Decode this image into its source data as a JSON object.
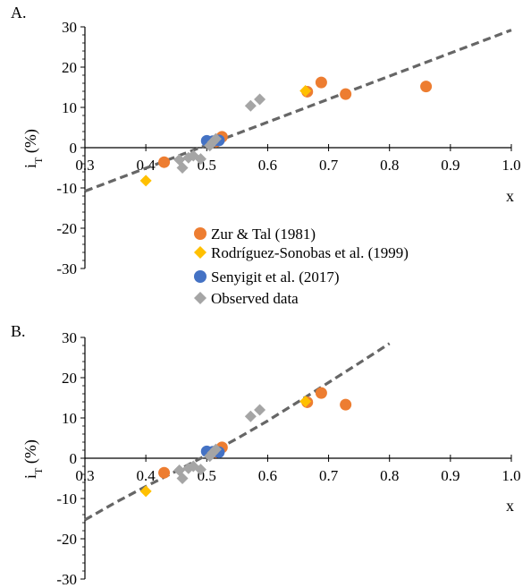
{
  "colors": {
    "zur": "#ED7D31",
    "rodriguez": "#FFC000",
    "senyigit": "#4472C4",
    "observed": "#A5A5A5",
    "trend": "#666666"
  },
  "legend": {
    "zur": "Zur & Tal (1981)",
    "rodriguez": "Rodríguez-Sonobas et al. (1999)",
    "senyigit": "Senyigit et al. (2017)",
    "observed": "Observed data"
  },
  "chart_data": [
    {
      "type": "scatter",
      "panel_label": "A.",
      "xlabel": "x",
      "ylabel": "iT (%)",
      "ylabel_main": "i",
      "ylabel_sub": "T",
      "ylabel_rest": " (%)",
      "xlim": [
        0.3,
        1.0
      ],
      "ylim": [
        -30,
        30
      ],
      "xticks": [
        "0.3",
        "0.4",
        "0.5",
        "0.6",
        "0.7",
        "0.8",
        "0.9",
        "1.0"
      ],
      "yticks": [
        "30",
        "20",
        "10",
        "0",
        "-10",
        "-20",
        "-30"
      ],
      "series": [
        {
          "name": "Zur & Tal (1981)",
          "marker": "circle",
          "color_key": "zur",
          "points": [
            [
              0.43,
              -3.6
            ],
            [
              0.515,
              1.5
            ],
            [
              0.525,
              2.7
            ],
            [
              0.665,
              13.9
            ],
            [
              0.688,
              16.2
            ],
            [
              0.728,
              13.3
            ],
            [
              0.86,
              15.2
            ]
          ]
        },
        {
          "name": "Rodríguez-Sonobas et al. (1999)",
          "marker": "diamond",
          "color_key": "rodriguez",
          "points": [
            [
              0.4,
              -8.2
            ],
            [
              0.662,
              14.1
            ]
          ]
        },
        {
          "name": "Senyigit et al. (2017)",
          "marker": "circle",
          "color_key": "senyigit",
          "points": [
            [
              0.5,
              1.7
            ],
            [
              0.51,
              1.6
            ],
            [
              0.52,
              1.8
            ]
          ]
        },
        {
          "name": "Observed data",
          "marker": "diamond",
          "color_key": "observed",
          "points": [
            [
              0.455,
              -3.0
            ],
            [
              0.46,
              -5.0
            ],
            [
              0.47,
              -2.5
            ],
            [
              0.478,
              -2.0
            ],
            [
              0.49,
              -2.8
            ],
            [
              0.505,
              0.5
            ],
            [
              0.51,
              1.4
            ],
            [
              0.515,
              2.2
            ],
            [
              0.572,
              10.4
            ],
            [
              0.587,
              12.0
            ]
          ]
        }
      ],
      "trendline": {
        "x": [
          0.3,
          1.0
        ],
        "y": [
          -10.8,
          29.2
        ]
      }
    },
    {
      "type": "scatter",
      "panel_label": "B.",
      "xlabel": "x",
      "ylabel": "iT (%)",
      "ylabel_main": "i",
      "ylabel_sub": "T",
      "ylabel_rest": " (%)",
      "xlim": [
        0.3,
        1.0
      ],
      "ylim": [
        -30,
        30
      ],
      "xticks": [
        "0.3",
        "0.4",
        "0.5",
        "0.6",
        "0.7",
        "0.8",
        "0.9",
        "1.0"
      ],
      "yticks": [
        "30",
        "20",
        "10",
        "0",
        "-10",
        "-20",
        "-30"
      ],
      "series": [
        {
          "name": "Zur & Tal (1981)",
          "marker": "circle",
          "color_key": "zur",
          "points": [
            [
              0.43,
              -3.6
            ],
            [
              0.515,
              1.5
            ],
            [
              0.525,
              2.7
            ],
            [
              0.665,
              13.9
            ],
            [
              0.688,
              16.2
            ],
            [
              0.728,
              13.3
            ]
          ]
        },
        {
          "name": "Rodríguez-Sonobas et al. (1999)",
          "marker": "diamond",
          "color_key": "rodriguez",
          "points": [
            [
              0.4,
              -8.2
            ],
            [
              0.662,
              14.1
            ]
          ]
        },
        {
          "name": "Senyigit et al. (2017)",
          "marker": "circle",
          "color_key": "senyigit",
          "points": [
            [
              0.5,
              1.7
            ],
            [
              0.51,
              1.6
            ],
            [
              0.52,
              1.5
            ]
          ]
        },
        {
          "name": "Observed data",
          "marker": "diamond",
          "color_key": "observed",
          "points": [
            [
              0.455,
              -3.0
            ],
            [
              0.46,
              -5.0
            ],
            [
              0.47,
              -2.5
            ],
            [
              0.478,
              -2.0
            ],
            [
              0.49,
              -2.8
            ],
            [
              0.505,
              0.5
            ],
            [
              0.51,
              1.4
            ],
            [
              0.515,
              2.2
            ],
            [
              0.572,
              10.4
            ],
            [
              0.587,
              12.0
            ]
          ]
        }
      ],
      "trendline": {
        "x": [
          0.3,
          0.35,
          0.4,
          0.45,
          0.5,
          0.55,
          0.6,
          0.65,
          0.7,
          0.75,
          0.8
        ],
        "y": [
          -15.3,
          -11.0,
          -7.0,
          -3.2,
          0.8,
          4.9,
          9.3,
          14.0,
          18.8,
          23.6,
          28.5
        ]
      }
    }
  ]
}
